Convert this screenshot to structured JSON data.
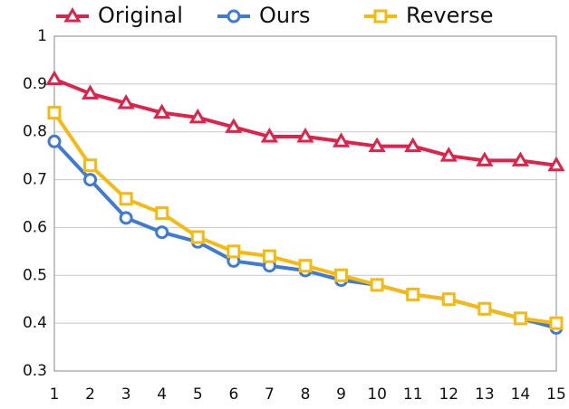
{
  "chart_data": {
    "type": "line",
    "x": [
      1,
      2,
      3,
      4,
      5,
      6,
      7,
      8,
      9,
      10,
      11,
      12,
      13,
      14,
      15
    ],
    "xlim": [
      1,
      15
    ],
    "xticks": [
      1,
      2,
      3,
      4,
      5,
      6,
      7,
      8,
      9,
      10,
      11,
      12,
      13,
      14,
      15
    ],
    "ylim": [
      0.3,
      1
    ],
    "yticks": [
      0.3,
      0.4,
      0.5,
      0.6,
      0.7,
      0.8,
      0.9,
      1
    ],
    "grid": true,
    "legend": "top",
    "series": [
      {
        "name": "Original",
        "color": "#e0224a",
        "marker": "triangle",
        "values": [
          0.91,
          0.88,
          0.86,
          0.84,
          0.83,
          0.81,
          0.79,
          0.79,
          0.78,
          0.77,
          0.77,
          0.75,
          0.74,
          0.74,
          0.73
        ]
      },
      {
        "name": "Ours",
        "color": "#3f7ad6",
        "marker": "circle",
        "values": [
          0.78,
          0.7,
          0.62,
          0.59,
          0.57,
          0.53,
          0.52,
          0.51,
          0.49,
          0.48,
          0.46,
          0.45,
          0.43,
          0.41,
          0.39
        ]
      },
      {
        "name": "Reverse",
        "color": "#f7b90e",
        "marker": "square",
        "values": [
          0.84,
          0.73,
          0.66,
          0.63,
          0.58,
          0.55,
          0.54,
          0.52,
          0.5,
          0.48,
          0.46,
          0.45,
          0.43,
          0.41,
          0.4
        ]
      }
    ]
  }
}
